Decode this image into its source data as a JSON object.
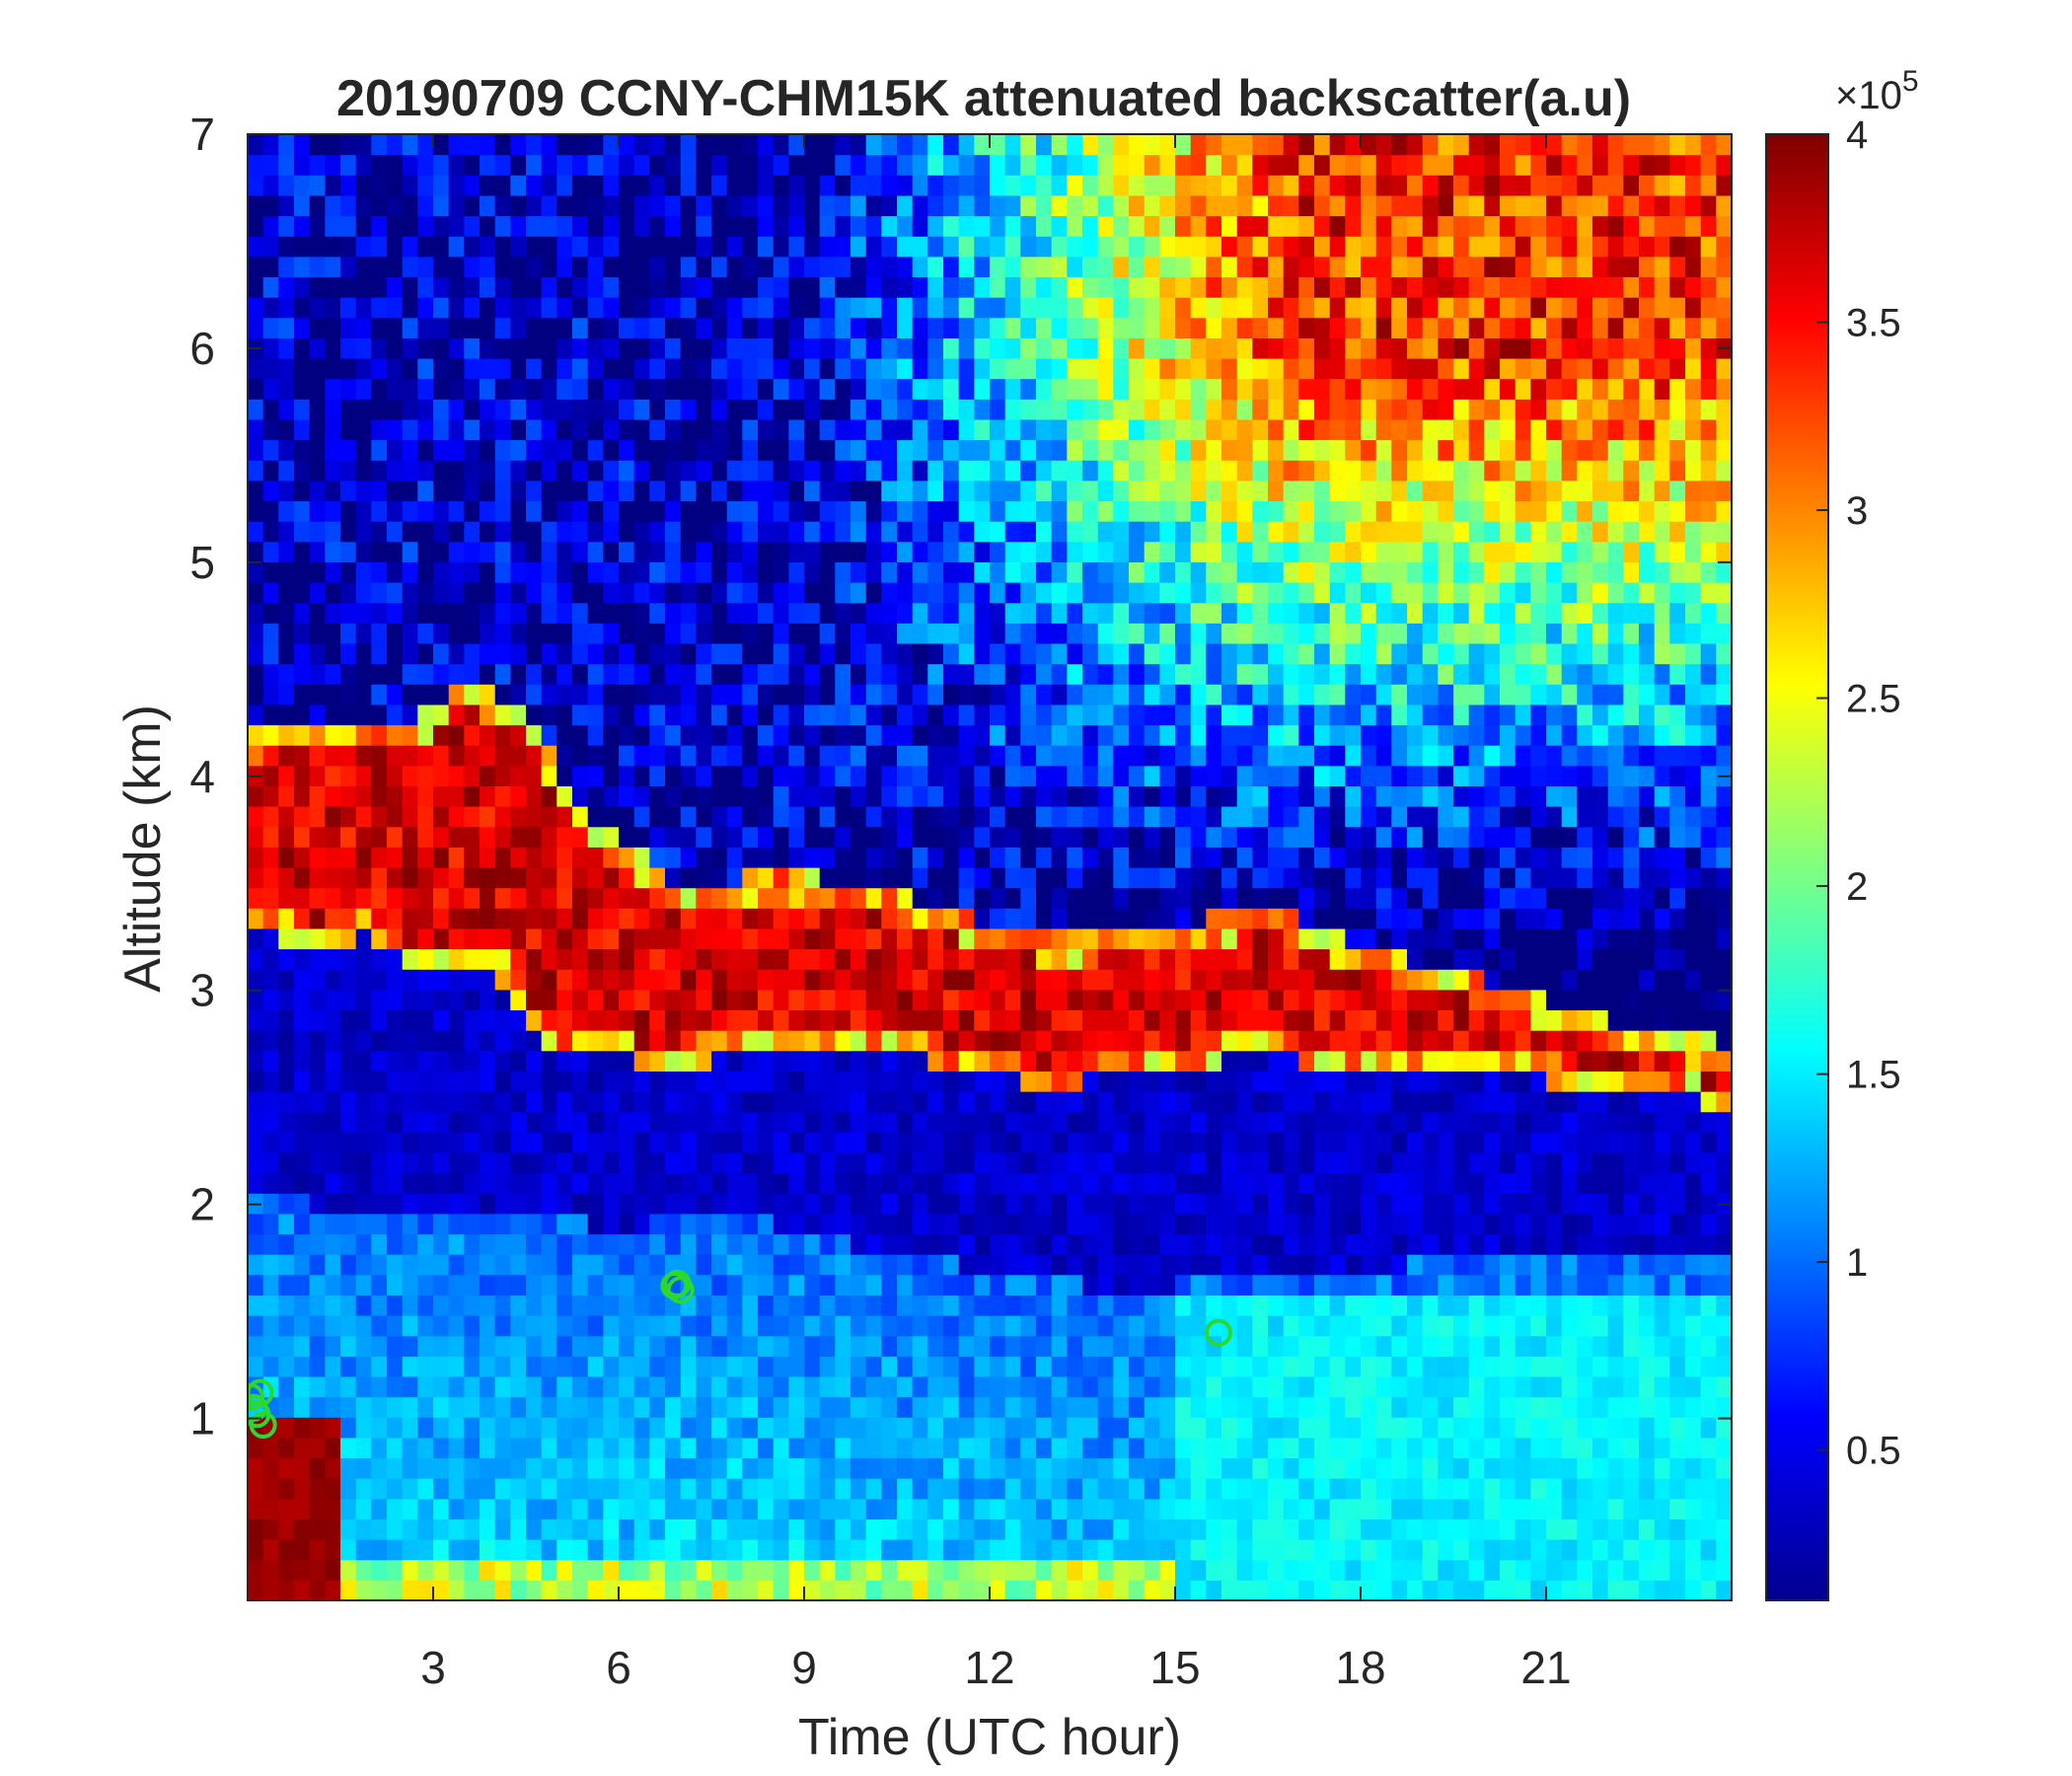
{
  "chart_data": {
    "type": "heatmap",
    "title": "20190709 CCNY-CHM15K attenuated backscatter(a.u)",
    "xlabel": "Time (UTC hour)",
    "ylabel": "Altitude (km)",
    "xlim": [
      0,
      24
    ],
    "ylim": [
      0.15,
      7
    ],
    "xticks": [
      3,
      6,
      9,
      12,
      15,
      18,
      21
    ],
    "yticks": [
      1,
      2,
      3,
      4,
      5,
      6,
      7
    ],
    "colorbar": {
      "colormap": "jet",
      "range": [
        0.1,
        4
      ],
      "ticks": [
        0.5,
        1,
        1.5,
        2,
        2.5,
        3,
        3.5,
        4
      ],
      "multiplier_base": "×10",
      "multiplier_exponent": "5"
    },
    "features": {
      "aerosol_layer_top_km": [
        [
          0,
          4.2
        ],
        [
          1,
          4.25
        ],
        [
          2,
          4.25
        ],
        [
          3,
          4.3
        ],
        [
          3.5,
          4.45
        ],
        [
          4.5,
          4.3
        ],
        [
          5.5,
          3.8
        ],
        [
          7,
          3.5
        ],
        [
          9,
          3.55
        ],
        [
          10.5,
          3.45
        ],
        [
          12,
          3.3
        ],
        [
          13,
          3.25
        ],
        [
          15,
          3.3
        ],
        [
          16.5,
          3.4
        ],
        [
          18,
          3.2
        ],
        [
          20,
          3.05
        ],
        [
          22,
          2.85
        ],
        [
          24,
          2.75
        ]
      ],
      "aerosol_layer_bottom_km": [
        [
          0,
          3.3
        ],
        [
          1,
          3.2
        ],
        [
          2,
          3.25
        ],
        [
          3,
          3.05
        ],
        [
          4,
          3.1
        ],
        [
          5,
          2.7
        ],
        [
          7,
          2.65
        ],
        [
          9,
          2.75
        ],
        [
          10.5,
          2.7
        ],
        [
          12,
          2.6
        ],
        [
          13,
          2.55
        ],
        [
          15,
          2.65
        ],
        [
          16.5,
          2.7
        ],
        [
          18,
          2.6
        ],
        [
          20,
          2.6
        ],
        [
          22,
          2.55
        ],
        [
          24,
          2.45
        ]
      ],
      "pbl_top_km": [
        [
          0,
          2.05
        ],
        [
          2,
          1.95
        ],
        [
          4,
          1.95
        ],
        [
          6,
          1.9
        ],
        [
          8,
          1.95
        ],
        [
          10,
          1.8
        ],
        [
          12,
          1.7
        ],
        [
          14,
          1.6
        ],
        [
          16,
          1.65
        ],
        [
          18,
          1.7
        ],
        [
          20,
          1.75
        ],
        [
          22,
          1.8
        ],
        [
          24,
          1.75
        ]
      ],
      "markers": [
        {
          "x": 0.1,
          "y": 1.05
        },
        {
          "x": 0.2,
          "y": 1.12
        },
        {
          "x": 0.25,
          "y": 0.97
        },
        {
          "x": 0.05,
          "y": 1.1
        },
        {
          "x": 0.15,
          "y": 1.02
        },
        {
          "x": 6.9,
          "y": 1.62
        },
        {
          "x": 7.0,
          "y": 1.6
        },
        {
          "x": 6.95,
          "y": 1.63
        },
        {
          "x": 15.7,
          "y": 1.4
        }
      ]
    },
    "marker_color": "#2bd82b"
  }
}
